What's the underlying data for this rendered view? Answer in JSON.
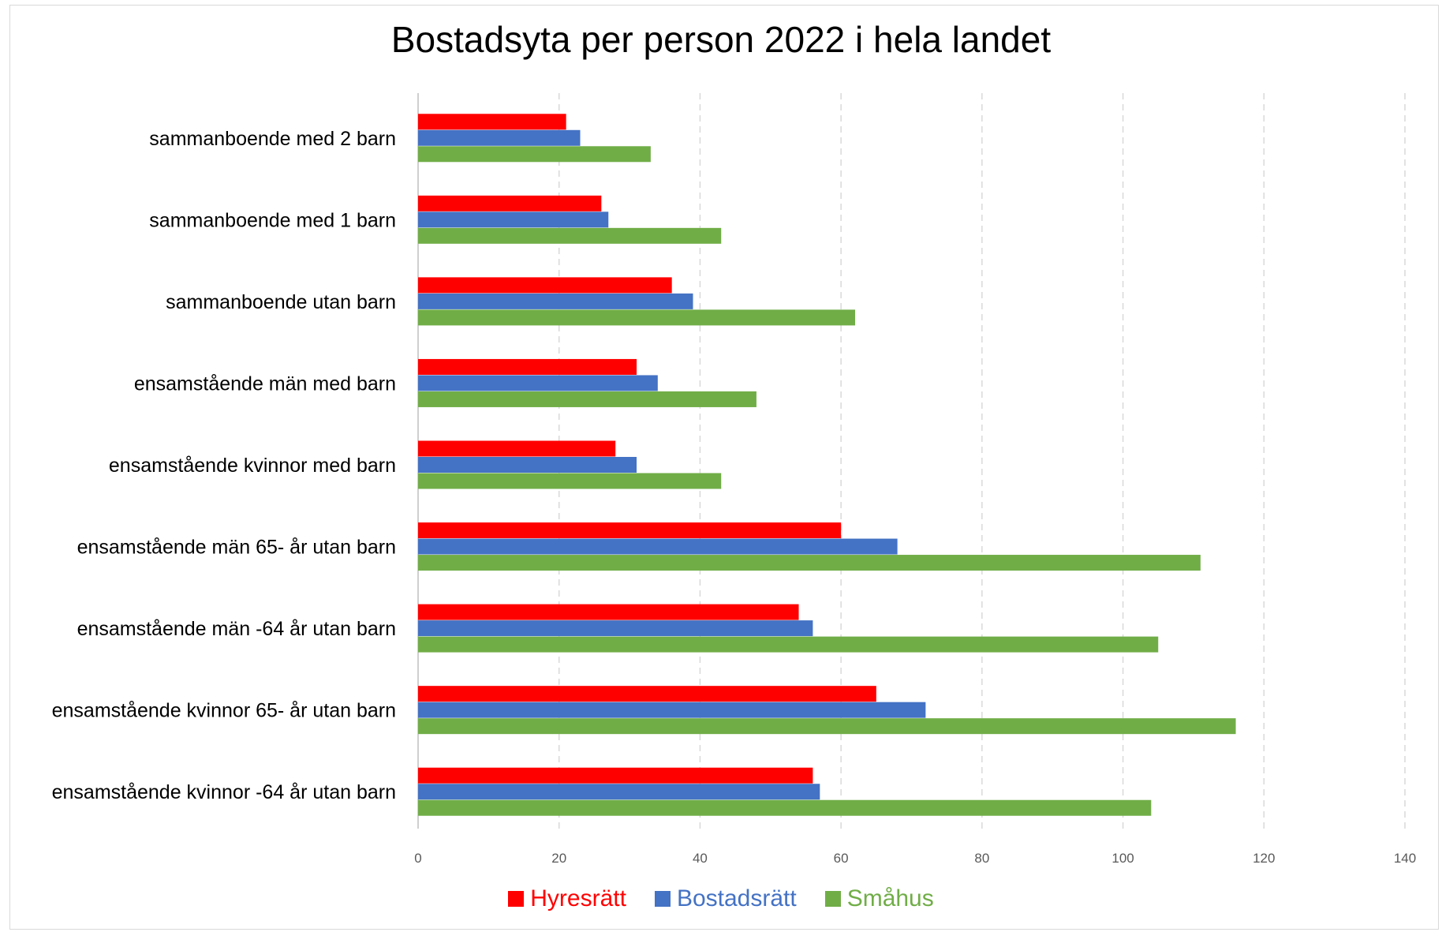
{
  "chart_data": {
    "type": "bar",
    "orientation": "horizontal",
    "title": "Bostadsyta per person 2022 i hela landet",
    "categories": [
      "sammanboende med 2 barn",
      "sammanboende med 1 barn",
      "sammanboende utan barn",
      "ensamstående män med barn",
      "ensamstående kvinnor med barn",
      "ensamstående män 65- år utan barn",
      "ensamstående män -64 år utan barn",
      "ensamstående kvinnor 65- år utan barn",
      "ensamstående kvinnor -64 år utan barn"
    ],
    "series": [
      {
        "name": "Hyresrätt",
        "color": "#ff0000",
        "values": [
          21,
          26,
          36,
          31,
          28,
          60,
          54,
          65,
          56
        ]
      },
      {
        "name": "Bostadsrätt",
        "color": "#4472c4",
        "values": [
          23,
          27,
          39,
          34,
          31,
          68,
          56,
          72,
          57
        ]
      },
      {
        "name": "Småhus",
        "color": "#70ad47",
        "values": [
          33,
          43,
          62,
          48,
          43,
          111,
          105,
          116,
          104
        ]
      }
    ],
    "xlim": [
      0,
      140
    ],
    "xticks": [
      "0",
      "20",
      "40",
      "60",
      "80",
      "100",
      "120",
      "140"
    ],
    "grid": "vertical dashed",
    "legend_position": "bottom"
  }
}
